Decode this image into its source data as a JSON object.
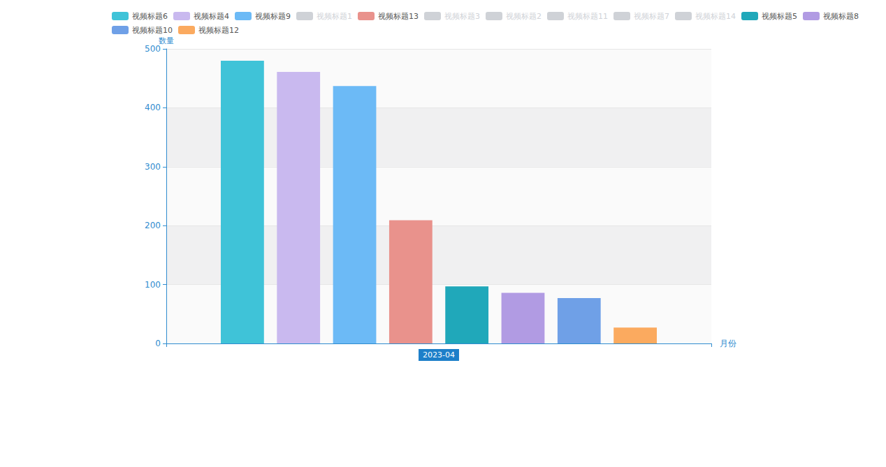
{
  "chart_data": {
    "type": "bar",
    "categories": [
      "2023-04"
    ],
    "series": [
      {
        "name": "视频标题6",
        "color": "#3fc3d8",
        "values": [
          480
        ]
      },
      {
        "name": "视频标题4",
        "color": "#c9b9ef",
        "values": [
          461
        ]
      },
      {
        "name": "视频标题9",
        "color": "#6cbaf6",
        "values": [
          437
        ]
      },
      {
        "name": "视频标题1",
        "values": [
          null
        ]
      },
      {
        "name": "视频标题13",
        "color": "#e9928c",
        "values": [
          209
        ]
      },
      {
        "name": "视频标题3",
        "values": [
          null
        ]
      },
      {
        "name": "视频标题2",
        "values": [
          null
        ]
      },
      {
        "name": "视频标题11",
        "values": [
          null
        ]
      },
      {
        "name": "视频标题7",
        "values": [
          null
        ]
      },
      {
        "name": "视频标题14",
        "values": [
          null
        ]
      },
      {
        "name": "视频标题5",
        "color": "#20a8ba",
        "values": [
          97
        ]
      },
      {
        "name": "视频标题8",
        "color": "#b19be3",
        "values": [
          86
        ]
      },
      {
        "name": "视频标题10",
        "color": "#6fa0e7",
        "values": [
          77
        ]
      },
      {
        "name": "视频标题12",
        "color": "#fbaa5f",
        "values": [
          27
        ]
      }
    ],
    "x_label": "月份",
    "y_label": "数量",
    "ylim": [
      0,
      500
    ],
    "yticks": [
      0,
      100,
      200,
      300,
      400,
      500
    ],
    "grid": true,
    "legend": "top"
  }
}
